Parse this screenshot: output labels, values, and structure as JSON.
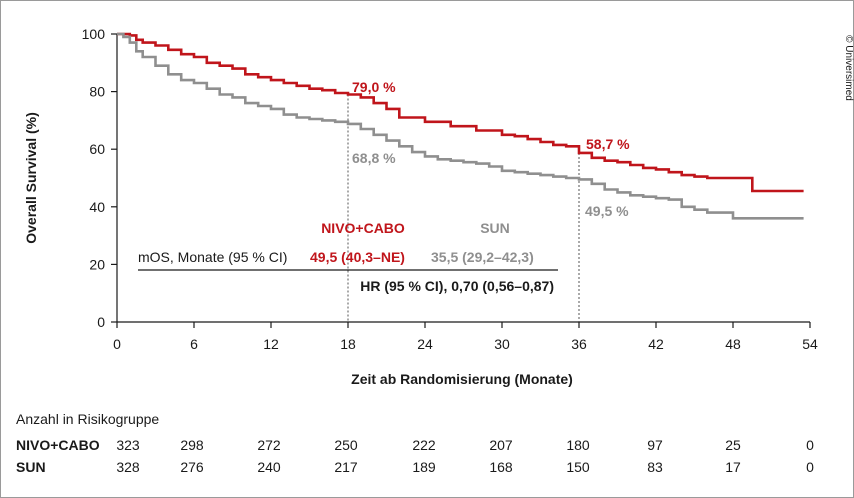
{
  "chart_data": {
    "type": "line",
    "xlabel": "Zeit ab Randomisierung (Monate)",
    "ylabel": "Overall Survival (%)",
    "xlim": [
      0,
      54
    ],
    "ylim": [
      0,
      100
    ],
    "x_ticks": [
      "0",
      "6",
      "12",
      "18",
      "24",
      "30",
      "36",
      "42",
      "48",
      "54"
    ],
    "y_ticks": [
      "0",
      "20",
      "40",
      "60",
      "80",
      "100"
    ],
    "grid": false,
    "series": [
      {
        "name": "NIVO+CABO",
        "color": "#c0151b",
        "x": [
          0,
          1,
          1.5,
          2,
          3,
          4,
          5,
          6,
          7,
          8,
          9,
          10,
          11,
          12,
          13,
          14,
          15,
          16,
          17,
          18,
          19,
          20,
          21,
          22,
          24,
          26,
          28,
          30,
          31,
          32,
          33,
          34,
          35,
          36,
          37,
          38,
          39,
          40,
          41,
          42,
          43,
          44,
          45,
          46,
          47,
          48,
          49,
          49.5,
          52,
          53.5
        ],
        "y": [
          100,
          99.5,
          98,
          97,
          96,
          94.5,
          93,
          92,
          90,
          89,
          88,
          86,
          85,
          84,
          83,
          82,
          81,
          80.5,
          79.5,
          79,
          78,
          76,
          74,
          71,
          69.5,
          68,
          66.5,
          65,
          64.5,
          63.5,
          62.5,
          61.5,
          61,
          58.7,
          57,
          56,
          55.5,
          54.5,
          53.5,
          53,
          52,
          51,
          50.5,
          50,
          50,
          50,
          50,
          45.5,
          45.5,
          45.5
        ]
      },
      {
        "name": "SUN",
        "color": "#8f8f8f",
        "x": [
          0,
          0.5,
          1,
          1.5,
          2,
          3,
          4,
          5,
          6,
          7,
          8,
          9,
          10,
          11,
          12,
          13,
          14,
          15,
          16,
          17,
          18,
          19,
          20,
          21,
          22,
          23,
          24,
          25,
          26,
          27,
          28,
          29,
          30,
          31,
          32,
          33,
          34,
          35,
          36,
          37,
          38,
          39,
          40,
          41,
          42,
          43,
          44,
          45,
          46,
          47,
          48,
          50,
          52,
          53.5
        ],
        "y": [
          100,
          99,
          97,
          94,
          92,
          89,
          86,
          84,
          83,
          81,
          79,
          78,
          76,
          75,
          74,
          72,
          71,
          70.5,
          70,
          69.5,
          68.8,
          67,
          65,
          63,
          61,
          59,
          57.5,
          56.5,
          56,
          55.5,
          55,
          54,
          52.5,
          52,
          51.5,
          51,
          50.5,
          50,
          49.5,
          48,
          46,
          45,
          44,
          43.5,
          43,
          42.5,
          40,
          39,
          38,
          38,
          36,
          36,
          36,
          36
        ]
      }
    ],
    "annotations": {
      "nivo_18": "79,0 %",
      "sun_18": "68,8 %",
      "nivo_36": "58,7 %",
      "sun_36": "49,5 %"
    },
    "reference_lines": [
      18,
      36
    ]
  },
  "summary": {
    "col_nivo": "NIVO+CABO",
    "col_sun": "SUN",
    "mos_label": "mOS, Monate (95 % CI)",
    "mos_nivo": "49,5 (40,3–NE)",
    "mos_sun": "35,5 (29,2–42,3)",
    "hr": "HR (95 % CI), 0,70 (0,56–0,87)"
  },
  "risk_table": {
    "title": "Anzahl in Risikogruppe",
    "rows": [
      {
        "label": "NIVO+CABO",
        "values": [
          "323",
          "298",
          "272",
          "250",
          "222",
          "207",
          "180",
          "97",
          "25",
          "0"
        ]
      },
      {
        "label": "SUN",
        "values": [
          "328",
          "276",
          "240",
          "217",
          "189",
          "168",
          "150",
          "83",
          "17",
          "0"
        ]
      }
    ]
  },
  "copyright": "© Universimed"
}
